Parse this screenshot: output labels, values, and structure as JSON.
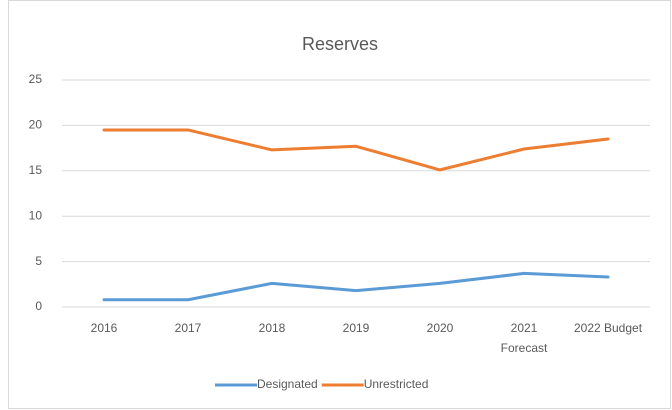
{
  "chart_data": {
    "type": "line",
    "title": "Reserves",
    "categories": [
      "2016",
      "2017",
      "2018",
      "2019",
      "2020",
      "2021\nForecast",
      "2022 Budget"
    ],
    "series": [
      {
        "name": "Designated",
        "color": "#5b9bd5",
        "values": [
          0.8,
          0.8,
          2.6,
          1.8,
          2.6,
          3.7,
          3.3
        ]
      },
      {
        "name": "Unrestricted",
        "color": "#ed7d31",
        "values": [
          19.5,
          19.5,
          17.3,
          17.7,
          15.1,
          17.4,
          18.5
        ]
      }
    ],
    "ylim": [
      0,
      25
    ],
    "yticks": [
      0,
      5,
      10,
      15,
      20,
      25
    ],
    "grid": true,
    "legend": "bottom"
  }
}
